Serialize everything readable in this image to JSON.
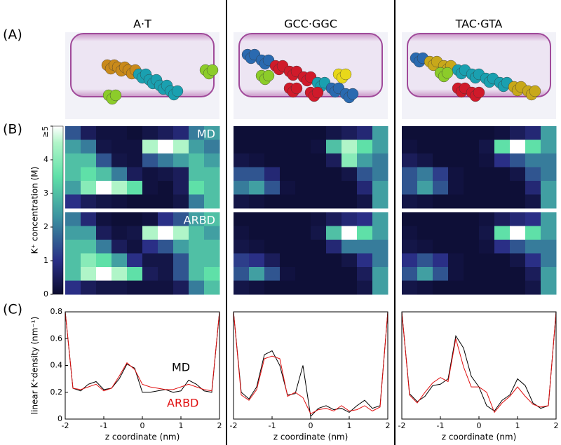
{
  "panel_labels": [
    "(A)",
    "(B)",
    "(C)"
  ],
  "chart_data": [
    {
      "type": "heatmap",
      "title": "A·T",
      "zlim": [
        0,
        5
      ],
      "zticks": [
        0,
        1,
        2,
        3,
        4,
        {
          "value": 5,
          "label": "≥5"
        }
      ],
      "zlabel": "K⁺ concentration (M)",
      "series": [
        {
          "name": "MD",
          "values": [
            [
              1.5,
              0.5,
              0.2,
              0.2,
              0.1,
              0.3,
              0.5,
              0.8,
              2.0,
              2.5
            ],
            [
              2.5,
              2.0,
              0.3,
              0.2,
              0.2,
              4.5,
              5,
              4.5,
              2.5,
              2.0
            ],
            [
              3.0,
              3.0,
              1.5,
              0.3,
              0.2,
              1.5,
              2.0,
              2.5,
              3.0,
              2.5
            ],
            [
              3.0,
              3.5,
              3.0,
              2.0,
              0.5,
              0.2,
              0.3,
              0.5,
              3.0,
              3.0
            ],
            [
              2.5,
              4.0,
              5,
              4.5,
              3.5,
              0.2,
              0.1,
              0.5,
              3.5,
              3.0
            ],
            [
              1.0,
              0.5,
              0.3,
              0.2,
              0.1,
              0.1,
              0.1,
              0.3,
              2.0,
              3.0
            ]
          ]
        },
        {
          "name": "ARBD",
          "values": [
            [
              2.0,
              0.8,
              0.2,
              0.1,
              0.1,
              0.2,
              1.0,
              1.5,
              2.5,
              3.0
            ],
            [
              2.5,
              2.5,
              0.5,
              0.2,
              0.3,
              4.5,
              5,
              4.5,
              3.0,
              2.5
            ],
            [
              3.0,
              3.0,
              2.0,
              0.5,
              0.2,
              1.0,
              1.5,
              2.5,
              3.0,
              3.0
            ],
            [
              3.0,
              4.0,
              3.5,
              2.5,
              1.0,
              0.3,
              0.3,
              1.5,
              3.0,
              3.0
            ],
            [
              3.0,
              4.5,
              5,
              4.5,
              3.5,
              0.5,
              0.3,
              1.5,
              3.0,
              3.5
            ],
            [
              1.0,
              0.5,
              0.3,
              0.3,
              0.2,
              0.2,
              0.2,
              0.5,
              2.0,
              3.0
            ]
          ]
        }
      ]
    },
    {
      "type": "heatmap",
      "title": "GCC·GGC",
      "series": [
        {
          "values": [
            [
              0.1,
              0.1,
              0.1,
              0.1,
              0.1,
              0.1,
              0.3,
              0.5,
              0.8,
              2.5
            ],
            [
              0.1,
              0.1,
              0.1,
              0.1,
              0.1,
              0.2,
              3.0,
              4.5,
              3.5,
              2.5
            ],
            [
              0.3,
              0.2,
              0.1,
              0.1,
              0.1,
              0.1,
              0.5,
              4.0,
              2.5,
              2.0
            ],
            [
              1.5,
              1.5,
              0.8,
              0.1,
              0.1,
              0.1,
              0.1,
              0.3,
              1.5,
              2.0
            ],
            [
              2.0,
              2.5,
              1.5,
              0.2,
              0.1,
              0.1,
              0.1,
              0.1,
              0.8,
              2.5
            ],
            [
              0.3,
              0.2,
              0.1,
              0.1,
              0.1,
              0.1,
              0.1,
              0.1,
              0.3,
              2.5
            ]
          ]
        },
        {
          "values": [
            [
              0.1,
              0.1,
              0.1,
              0.1,
              0.1,
              0.2,
              0.5,
              0.8,
              1.0,
              2.5
            ],
            [
              0.2,
              0.1,
              0.1,
              0.1,
              0.1,
              0.3,
              3.0,
              5,
              3.5,
              2.5
            ],
            [
              0.3,
              0.2,
              0.1,
              0.1,
              0.1,
              0.1,
              0.8,
              2.0,
              2.0,
              2.0
            ],
            [
              1.2,
              1.0,
              0.5,
              0.1,
              0.1,
              0.1,
              0.1,
              0.3,
              1.0,
              2.0
            ],
            [
              1.5,
              2.5,
              1.5,
              0.2,
              0.1,
              0.1,
              0.1,
              0.1,
              0.5,
              2.5
            ],
            [
              0.3,
              0.2,
              0.1,
              0.1,
              0.1,
              0.1,
              0.1,
              0.1,
              0.3,
              2.5
            ]
          ]
        }
      ]
    },
    {
      "type": "heatmap",
      "title": "TAC·GTA",
      "series": [
        {
          "values": [
            [
              0.1,
              0.1,
              0.1,
              0.1,
              0.1,
              0.1,
              0.2,
              0.5,
              0.8,
              2.5
            ],
            [
              0.2,
              0.1,
              0.1,
              0.1,
              0.1,
              0.3,
              3.5,
              5,
              3.5,
              2.5
            ],
            [
              0.5,
              0.3,
              0.1,
              0.1,
              0.1,
              0.2,
              1.0,
              1.5,
              2.0,
              2.0
            ],
            [
              1.5,
              2.0,
              1.2,
              0.2,
              0.1,
              0.1,
              0.1,
              0.3,
              1.5,
              2.0
            ],
            [
              1.5,
              2.5,
              1.5,
              0.2,
              0.1,
              0.1,
              0.1,
              0.1,
              0.8,
              2.5
            ],
            [
              0.3,
              0.2,
              0.1,
              0.1,
              0.1,
              0.1,
              0.1,
              0.1,
              0.3,
              2.5
            ]
          ]
        },
        {
          "values": [
            [
              0.1,
              0.1,
              0.1,
              0.1,
              0.1,
              0.2,
              0.5,
              0.8,
              1.0,
              2.5
            ],
            [
              0.2,
              0.1,
              0.1,
              0.1,
              0.1,
              0.3,
              3.5,
              5,
              3.5,
              2.5
            ],
            [
              0.3,
              0.2,
              0.1,
              0.1,
              0.1,
              0.2,
              1.0,
              1.5,
              2.0,
              2.0
            ],
            [
              1.0,
              1.5,
              1.0,
              0.2,
              0.1,
              0.1,
              0.1,
              0.3,
              1.0,
              2.0
            ],
            [
              1.5,
              2.5,
              1.5,
              0.2,
              0.1,
              0.1,
              0.1,
              0.1,
              0.5,
              2.5
            ],
            [
              0.3,
              0.2,
              0.1,
              0.1,
              0.1,
              0.1,
              0.1,
              0.1,
              0.3,
              2.5
            ]
          ]
        }
      ]
    },
    {
      "type": "line",
      "x": [
        -2,
        -1.8,
        -1.6,
        -1.4,
        -1.2,
        -1,
        -0.8,
        -0.6,
        -0.4,
        -0.2,
        0,
        0.2,
        0.4,
        0.6,
        0.8,
        1,
        1.2,
        1.4,
        1.6,
        1.8,
        2
      ],
      "xlim": [
        -2,
        2
      ],
      "xticks": [
        -2,
        -1,
        0,
        1,
        2
      ],
      "ylim": [
        0,
        0.8
      ],
      "yticks": [
        0,
        0.2,
        0.4,
        0.6,
        0.8
      ],
      "xlabel": "z coordinate (nm)",
      "ylabel": "linear K⁺density (nm⁻¹)",
      "series": [
        {
          "name": "MD",
          "color": "#000000",
          "values": [
            0.8,
            0.23,
            0.21,
            0.26,
            0.28,
            0.22,
            0.23,
            0.3,
            0.41,
            0.38,
            0.2,
            0.2,
            0.21,
            0.22,
            0.2,
            0.21,
            0.29,
            0.26,
            0.21,
            0.2,
            0.8
          ]
        },
        {
          "name": "ARBD",
          "color": "#e01010",
          "values": [
            0.8,
            0.23,
            0.22,
            0.24,
            0.26,
            0.21,
            0.23,
            0.32,
            0.42,
            0.37,
            0.26,
            0.24,
            0.23,
            0.22,
            0.22,
            0.24,
            0.26,
            0.24,
            0.22,
            0.21,
            0.8
          ]
        }
      ]
    },
    {
      "type": "line",
      "x": [
        -2,
        -1.8,
        -1.6,
        -1.4,
        -1.2,
        -1,
        -0.8,
        -0.6,
        -0.4,
        -0.2,
        0,
        0.2,
        0.4,
        0.6,
        0.8,
        1,
        1.2,
        1.4,
        1.6,
        1.8,
        2
      ],
      "xlim": [
        -2,
        2
      ],
      "xticks": [
        -2,
        -1,
        0,
        1,
        2
      ],
      "ylim": [
        0,
        0.8
      ],
      "xlabel": "z coordinate (nm)",
      "series": [
        {
          "color": "#000000",
          "values": [
            0.8,
            0.2,
            0.15,
            0.24,
            0.48,
            0.51,
            0.4,
            0.18,
            0.19,
            0.4,
            0.02,
            0.08,
            0.1,
            0.07,
            0.08,
            0.05,
            0.1,
            0.14,
            0.08,
            0.1,
            0.8
          ]
        },
        {
          "color": "#e01010",
          "values": [
            0.8,
            0.18,
            0.14,
            0.22,
            0.45,
            0.47,
            0.45,
            0.17,
            0.2,
            0.16,
            0.04,
            0.07,
            0.08,
            0.06,
            0.1,
            0.06,
            0.07,
            0.1,
            0.06,
            0.09,
            0.8
          ]
        }
      ]
    },
    {
      "type": "line",
      "x": [
        -2,
        -1.8,
        -1.6,
        -1.4,
        -1.2,
        -1,
        -0.8,
        -0.6,
        -0.4,
        -0.2,
        0,
        0.2,
        0.4,
        0.6,
        0.8,
        1,
        1.2,
        1.4,
        1.6,
        1.8,
        2
      ],
      "xlim": [
        -2,
        2
      ],
      "xticks": [
        -2,
        -1,
        0,
        1,
        2
      ],
      "ylim": [
        0,
        0.8
      ],
      "xlabel": "z coordinate (nm)",
      "series": [
        {
          "color": "#000000",
          "values": [
            0.8,
            0.19,
            0.13,
            0.17,
            0.25,
            0.26,
            0.3,
            0.62,
            0.53,
            0.32,
            0.24,
            0.1,
            0.06,
            0.14,
            0.18,
            0.3,
            0.25,
            0.12,
            0.08,
            0.1,
            0.8
          ]
        },
        {
          "color": "#e01010",
          "values": [
            0.8,
            0.18,
            0.12,
            0.2,
            0.27,
            0.31,
            0.28,
            0.6,
            0.39,
            0.24,
            0.24,
            0.2,
            0.05,
            0.12,
            0.17,
            0.24,
            0.17,
            0.11,
            0.09,
            0.1,
            0.8
          ]
        }
      ]
    }
  ]
}
